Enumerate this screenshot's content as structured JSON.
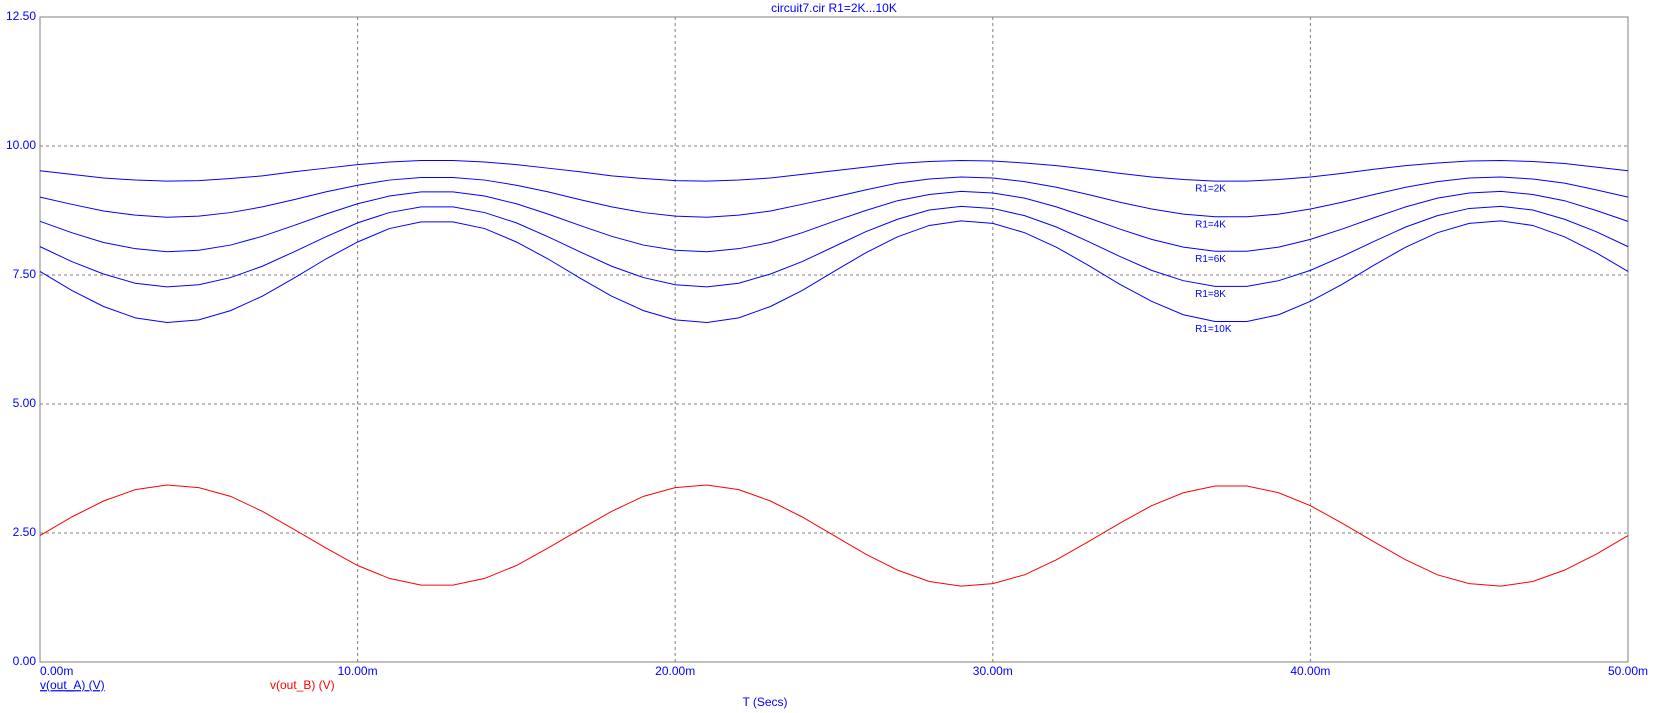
{
  "chart_data": {
    "type": "line",
    "title": "circuit7.cir R1=2K...10K",
    "x_label": "T (Secs)",
    "x": [
      0,
      0.001,
      0.002,
      0.003,
      0.004,
      0.005,
      0.006,
      0.007,
      0.008,
      0.009,
      0.01,
      0.011,
      0.012,
      0.013,
      0.014,
      0.015,
      0.016,
      0.017,
      0.018,
      0.019,
      0.02,
      0.021,
      0.022,
      0.023,
      0.024,
      0.025,
      0.026,
      0.027,
      0.028,
      0.029,
      0.03,
      0.031,
      0.032,
      0.033,
      0.034,
      0.035,
      0.036,
      0.037,
      0.038,
      0.039,
      0.04,
      0.041,
      0.042,
      0.043,
      0.044,
      0.045,
      0.046,
      0.047,
      0.048,
      0.049,
      0.05
    ],
    "series": [
      {
        "name": "R1=2K",
        "color": "#0000ff",
        "values": [
          9.52,
          9.45,
          9.38,
          9.34,
          9.32,
          9.33,
          9.37,
          9.42,
          9.5,
          9.57,
          9.64,
          9.69,
          9.72,
          9.72,
          9.69,
          9.64,
          9.57,
          9.5,
          9.42,
          9.37,
          9.33,
          9.32,
          9.34,
          9.38,
          9.45,
          9.52,
          9.59,
          9.66,
          9.7,
          9.72,
          9.71,
          9.67,
          9.62,
          9.55,
          9.47,
          9.4,
          9.35,
          9.32,
          9.32,
          9.35,
          9.4,
          9.47,
          9.55,
          9.62,
          9.67,
          9.71,
          9.72,
          9.7,
          9.66,
          9.59,
          9.52
        ]
      },
      {
        "name": "R1=4K",
        "color": "#0000ff",
        "values": [
          9.01,
          8.87,
          8.74,
          8.66,
          8.62,
          8.64,
          8.71,
          8.82,
          8.96,
          9.11,
          9.24,
          9.34,
          9.39,
          9.39,
          9.34,
          9.24,
          9.11,
          8.96,
          8.82,
          8.71,
          8.64,
          8.62,
          8.66,
          8.74,
          8.87,
          9.01,
          9.15,
          9.28,
          9.36,
          9.4,
          9.38,
          9.31,
          9.2,
          9.06,
          8.91,
          8.78,
          8.68,
          8.63,
          8.63,
          8.68,
          8.78,
          8.91,
          9.06,
          9.2,
          9.31,
          9.38,
          9.4,
          9.36,
          9.28,
          9.15,
          9.01
        ]
      },
      {
        "name": "R1=6K",
        "color": "#0000ff",
        "values": [
          8.54,
          8.32,
          8.13,
          8.01,
          7.95,
          7.98,
          8.08,
          8.25,
          8.46,
          8.68,
          8.88,
          9.03,
          9.11,
          9.11,
          9.03,
          8.88,
          8.68,
          8.46,
          8.25,
          8.08,
          7.98,
          7.95,
          8.01,
          8.13,
          8.32,
          8.54,
          8.75,
          8.94,
          9.06,
          9.12,
          9.09,
          8.99,
          8.82,
          8.61,
          8.39,
          8.19,
          8.04,
          7.96,
          7.96,
          8.04,
          8.19,
          8.39,
          8.61,
          8.82,
          8.99,
          9.09,
          9.12,
          9.06,
          8.94,
          8.75,
          8.54
        ]
      },
      {
        "name": "R1=8K",
        "color": "#0000ff",
        "values": [
          8.05,
          7.76,
          7.52,
          7.34,
          7.27,
          7.31,
          7.45,
          7.67,
          7.95,
          8.24,
          8.51,
          8.71,
          8.82,
          8.82,
          8.71,
          8.51,
          8.24,
          7.95,
          7.67,
          7.45,
          7.31,
          7.27,
          7.34,
          7.52,
          7.76,
          8.05,
          8.34,
          8.58,
          8.76,
          8.83,
          8.79,
          8.65,
          8.43,
          8.15,
          7.86,
          7.59,
          7.39,
          7.28,
          7.28,
          7.39,
          7.59,
          7.86,
          8.15,
          8.43,
          8.65,
          8.79,
          8.83,
          8.76,
          8.58,
          8.34,
          8.05
        ]
      },
      {
        "name": "R1=10K",
        "color": "#0000ff",
        "values": [
          7.57,
          7.2,
          6.89,
          6.67,
          6.58,
          6.63,
          6.81,
          7.09,
          7.44,
          7.81,
          8.14,
          8.4,
          8.53,
          8.53,
          8.4,
          8.14,
          7.81,
          7.44,
          7.09,
          6.81,
          6.63,
          6.58,
          6.67,
          6.89,
          7.2,
          7.57,
          7.93,
          8.24,
          8.46,
          8.55,
          8.5,
          8.32,
          8.04,
          7.69,
          7.32,
          6.99,
          6.73,
          6.6,
          6.6,
          6.73,
          6.99,
          7.32,
          7.69,
          8.04,
          8.32,
          8.5,
          8.55,
          8.46,
          8.24,
          7.93,
          7.57
        ]
      },
      {
        "color": "#ff0000",
        "values": [
          2.45,
          2.81,
          3.12,
          3.34,
          3.43,
          3.38,
          3.21,
          2.92,
          2.57,
          2.21,
          1.87,
          1.62,
          1.49,
          1.49,
          1.62,
          1.87,
          2.21,
          2.57,
          2.92,
          3.21,
          3.38,
          3.43,
          3.34,
          3.12,
          2.81,
          2.45,
          2.09,
          1.78,
          1.56,
          1.47,
          1.52,
          1.69,
          1.98,
          2.33,
          2.69,
          3.03,
          3.28,
          3.41,
          3.41,
          3.28,
          3.03,
          2.69,
          2.33,
          1.98,
          1.69,
          1.52,
          1.47,
          1.56,
          1.78,
          2.09,
          2.45
        ]
      }
    ],
    "legend": [
      {
        "name": "v(out_A) (V)",
        "color": "#0000ff"
      },
      {
        "name": "v(out_B) (V)",
        "color": "#ff0000"
      }
    ],
    "xlim": [
      0,
      0.05
    ],
    "ylim": [
      0,
      12.5
    ],
    "xticks": [
      {
        "value": 0,
        "label": "0.00m"
      },
      {
        "value": 0.01,
        "label": "10.00m"
      },
      {
        "value": 0.02,
        "label": "20.00m"
      },
      {
        "value": 0.03,
        "label": "30.00m"
      },
      {
        "value": 0.04,
        "label": "40.00m"
      },
      {
        "value": 0.05,
        "label": "50.00m"
      }
    ],
    "yticks": [
      {
        "value": 0,
        "label": "0.00"
      },
      {
        "value": 2.5,
        "label": "2.50"
      },
      {
        "value": 5,
        "label": "5.00"
      },
      {
        "value": 7.5,
        "label": "7.50"
      },
      {
        "value": 10,
        "label": "10.00"
      },
      {
        "value": 12.5,
        "label": "12.50"
      }
    ],
    "grid": true,
    "label_color": "#0000ff"
  }
}
